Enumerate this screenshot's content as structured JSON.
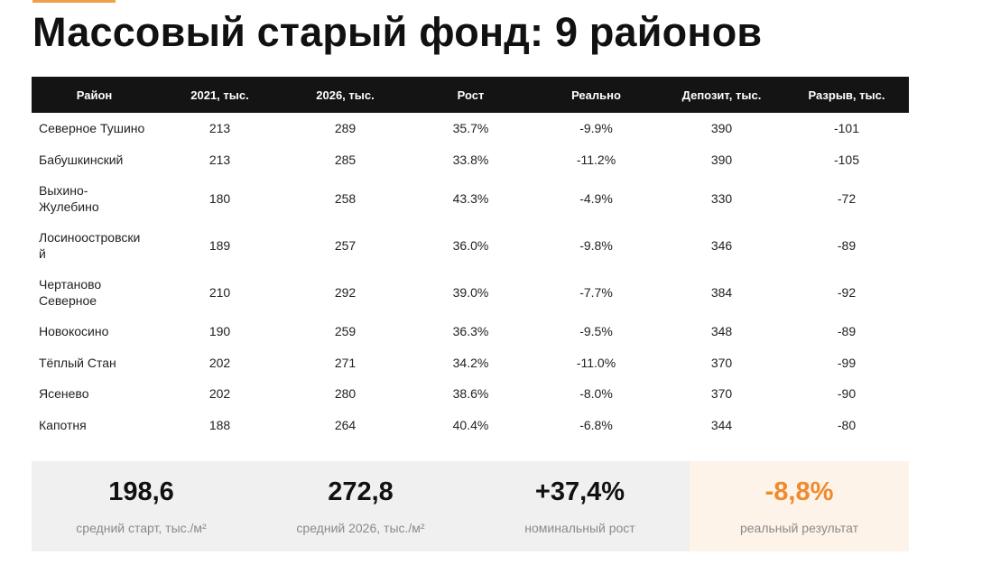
{
  "title": "Массовый старый фонд: 9 районов",
  "table": {
    "headers": [
      "Район",
      "2021, тыс.",
      "2026, тыс.",
      "Рост",
      "Реально",
      "Депозит, тыс.",
      "Разрыв, тыс."
    ],
    "rows": [
      {
        "name_lines": [
          "Северное Тушино"
        ],
        "v2021": "213",
        "v2026": "289",
        "growth": "35.7%",
        "real": "-9.9%",
        "deposit": "390",
        "gap": "-101"
      },
      {
        "name_lines": [
          "Бабушкинский"
        ],
        "v2021": "213",
        "v2026": "285",
        "growth": "33.8%",
        "real": "-11.2%",
        "deposit": "390",
        "gap": "-105"
      },
      {
        "name_lines": [
          "Выхино-",
          "Жулебино"
        ],
        "v2021": "180",
        "v2026": "258",
        "growth": "43.3%",
        "real": "-4.9%",
        "deposit": "330",
        "gap": "-72"
      },
      {
        "name_lines": [
          "Лосиноостровски",
          "й"
        ],
        "v2021": "189",
        "v2026": "257",
        "growth": "36.0%",
        "real": "-9.8%",
        "deposit": "346",
        "gap": "-89"
      },
      {
        "name_lines": [
          "Чертаново",
          "Северное"
        ],
        "v2021": "210",
        "v2026": "292",
        "growth": "39.0%",
        "real": "-7.7%",
        "deposit": "384",
        "gap": "-92"
      },
      {
        "name_lines": [
          "Новокосино"
        ],
        "v2021": "190",
        "v2026": "259",
        "growth": "36.3%",
        "real": "-9.5%",
        "deposit": "348",
        "gap": "-89"
      },
      {
        "name_lines": [
          "Тёплый Стан"
        ],
        "v2021": "202",
        "v2026": "271",
        "growth": "34.2%",
        "real": "-11.0%",
        "deposit": "370",
        "gap": "-99"
      },
      {
        "name_lines": [
          "Ясенево"
        ],
        "v2021": "202",
        "v2026": "280",
        "growth": "38.6%",
        "real": "-8.0%",
        "deposit": "370",
        "gap": "-90"
      },
      {
        "name_lines": [
          "Капотня"
        ],
        "v2021": "188",
        "v2026": "264",
        "growth": "40.4%",
        "real": "-6.8%",
        "deposit": "344",
        "gap": "-80"
      }
    ]
  },
  "summary": [
    {
      "value": "198,6",
      "label": "средний старт, тыс./м²"
    },
    {
      "value": "272,8",
      "label": "средний 2026, тыс./м²"
    },
    {
      "value": "+37,4%",
      "label": "номинальный рост"
    },
    {
      "value": "-8,8%",
      "label": "реальный результат"
    }
  ],
  "colors": {
    "accent": "#ef8a2e",
    "header_bg": "#141414",
    "card_bg": "#f0f0f0",
    "accent_card_bg": "#fdf3e9"
  }
}
